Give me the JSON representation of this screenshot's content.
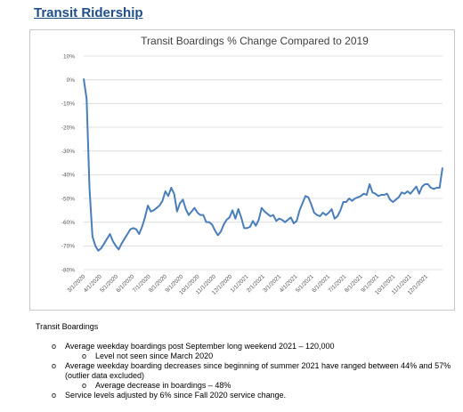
{
  "section_heading": "Transit Ridership",
  "chart_data": {
    "type": "line",
    "title": "Transit Boardings % Change Compared to 2019",
    "xlabel": "",
    "ylabel": "",
    "ylim": [
      -80,
      10
    ],
    "y_ticks": [
      "10%",
      "0%",
      "-10%",
      "-20%",
      "-30%",
      "-40%",
      "-50%",
      "-60%",
      "-70%",
      "-80%"
    ],
    "x_ticks": [
      "3/1/2020",
      "4/1/2020",
      "5/1/2020",
      "6/1/2020",
      "7/1/2020",
      "8/1/2020",
      "9/1/2020",
      "10/1/2020",
      "11/1/2020",
      "12/1/2020",
      "1/1/2021",
      "2/1/2021",
      "3/1/2021",
      "4/1/2021",
      "5/1/2021",
      "6/1/2021",
      "7/1/2021",
      "8/1/2021",
      "9/1/2021",
      "10/1/2021",
      "11/1/2021",
      "12/1/2021"
    ],
    "grid": true,
    "line_color": "#4a7ebb",
    "series": [
      {
        "values": [
          0.5,
          -8,
          -46,
          -66,
          -70,
          -72,
          -71,
          -69,
          -67,
          -65,
          -68,
          -70,
          -71.5,
          -69,
          -67,
          -65,
          -63,
          -62.5,
          -63,
          -65,
          -62,
          -58,
          -53,
          -55.5,
          -55,
          -54,
          -53,
          -51,
          -47,
          -49,
          -45.5,
          -48,
          -55.5,
          -52,
          -50.5,
          -54.5,
          -57,
          -55.5,
          -54,
          -56,
          -57,
          -57,
          -60,
          -60,
          -61,
          -63.5,
          -65.5,
          -64,
          -61,
          -59,
          -58,
          -55,
          -58.5,
          -54.5,
          -58,
          -62.5,
          -62.5,
          -62,
          -59.5,
          -61.5,
          -59,
          -54,
          -55.5,
          -56.5,
          -57.5,
          -57,
          -59.5,
          -58.5,
          -59,
          -60,
          -59,
          -58,
          -60.5,
          -59.5,
          -55,
          -52,
          -49,
          -49.5,
          -52.5,
          -56,
          -57,
          -57.5,
          -56,
          -57,
          -56,
          -54.5,
          -58.5,
          -57.5,
          -55,
          -51.5,
          -51.5,
          -50,
          -51,
          -50,
          -49.5,
          -49,
          -48,
          -48.5,
          -44,
          -47.5,
          -48,
          -49,
          -48.5,
          -48.5,
          -48,
          -50.5,
          -51.5,
          -50.5,
          -49.5,
          -47.5,
          -48,
          -47,
          -48,
          -46.5,
          -45,
          -48,
          -45,
          -44,
          -44,
          -45.5,
          -46,
          -45.5,
          -45.5,
          -37
        ]
      }
    ]
  },
  "notes": {
    "title": "Transit Boardings",
    "bullet_mark": "o",
    "items": [
      {
        "text": "Average weekday boardings post September long weekend 2021 – 120,000",
        "subitems": [
          "Level not seen since March 2020"
        ]
      },
      {
        "text": "Average weekday boarding decreases since beginning of summer 2021 have ranged between 44% and 57% (outlier data excluded)",
        "subitems": [
          "Average decrease in boardings – 48%"
        ]
      },
      {
        "text": "Service levels adjusted by 6% since Fall 2020 service change.",
        "subitems": []
      }
    ]
  }
}
